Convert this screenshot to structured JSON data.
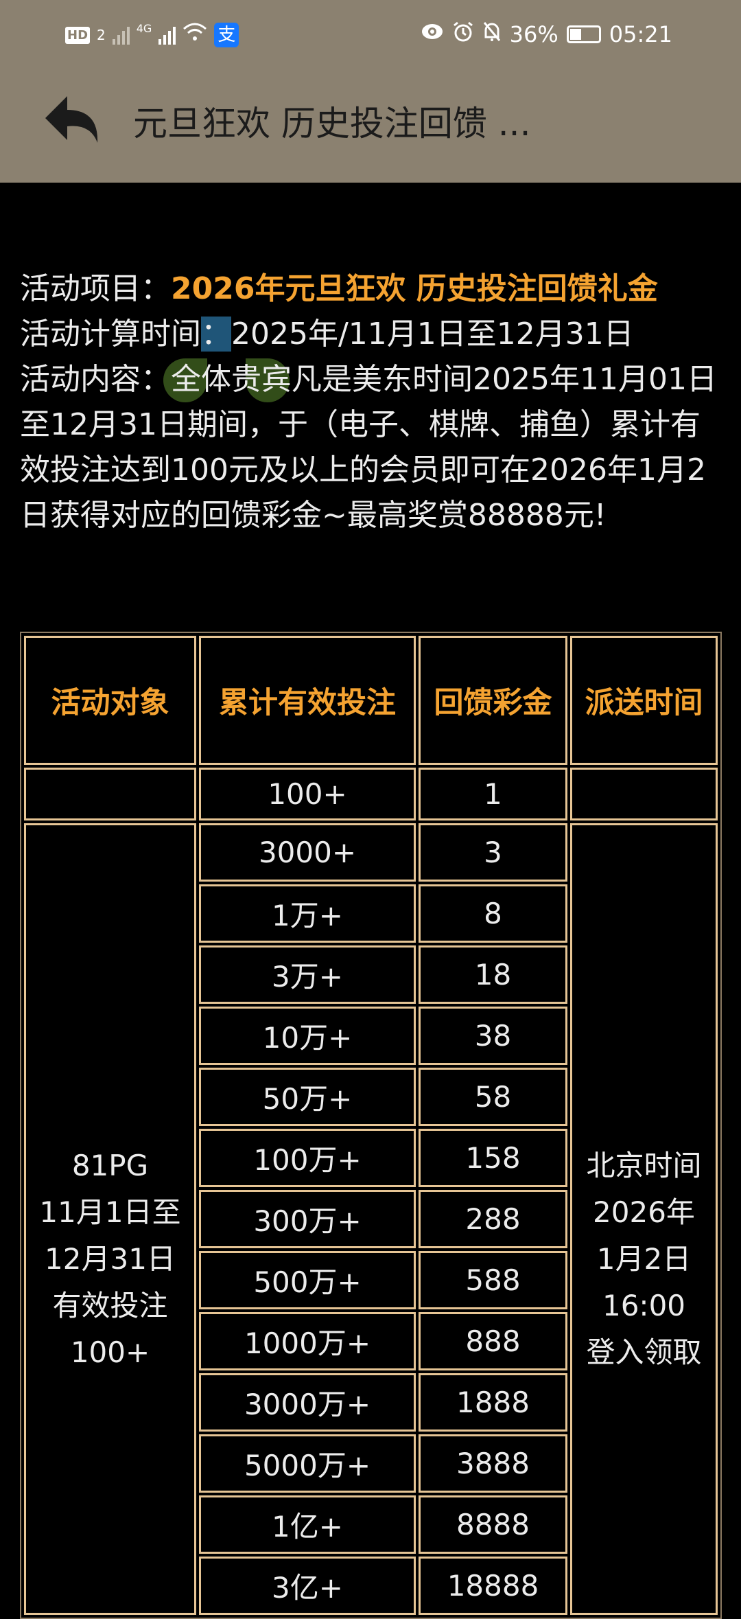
{
  "status_bar": {
    "hd_label": "HD",
    "sim_label": "2",
    "network": "4G",
    "alipay_icon_label": "支",
    "battery_percent": "36%",
    "battery_level": 0.36,
    "time": "05:21"
  },
  "header": {
    "title": "元旦狂欢 历史投注回馈 ..."
  },
  "content": {
    "project_label": "活动项目：",
    "project_value": "2026年元旦狂欢 历史投注回馈礼金",
    "period_label": "活动计算时间",
    "period_colon": "：",
    "period_value": "2025年/11月1日至12月31日",
    "desc_label": "活动内容：",
    "desc_value": "全体贵宾凡是美东时间2025年11月01日至12月31日期间，于（电子、棋牌、捕鱼）累计有效投注达到100元及以上的会员即可在2026年1月2日获得对应的回馈彩金~最高奖赏88888元!"
  },
  "colors": {
    "accent_orange": "#f5a331",
    "header_bg": "#8b8170",
    "cell_border": "#e6c595"
  },
  "table": {
    "headers": [
      "活动对象",
      "累计有效投注",
      "回馈彩金",
      "派送时间"
    ],
    "first_row": {
      "target": "",
      "bet": "100+",
      "bonus": "1",
      "time": ""
    },
    "target_lines": [
      "81PG",
      "11月1日至",
      "12月31日",
      "有效投注",
      "100+"
    ],
    "time_lines": [
      "北京时间",
      "2026年",
      "1月2日",
      "16:00",
      "登入领取"
    ],
    "rows": [
      {
        "bet": "3000+",
        "bonus": "3"
      },
      {
        "bet": "1万+",
        "bonus": "8"
      },
      {
        "bet": "3万+",
        "bonus": "18"
      },
      {
        "bet": "10万+",
        "bonus": "38"
      },
      {
        "bet": "50万+",
        "bonus": "58"
      },
      {
        "bet": "100万+",
        "bonus": "158"
      },
      {
        "bet": "300万+",
        "bonus": "288"
      },
      {
        "bet": "500万+",
        "bonus": "588"
      },
      {
        "bet": "1000万+",
        "bonus": "888"
      },
      {
        "bet": "3000万+",
        "bonus": "1888"
      },
      {
        "bet": "5000万+",
        "bonus": "3888"
      },
      {
        "bet": "1亿+",
        "bonus": "8888"
      },
      {
        "bet": "3亿+",
        "bonus": "18888"
      }
    ]
  }
}
